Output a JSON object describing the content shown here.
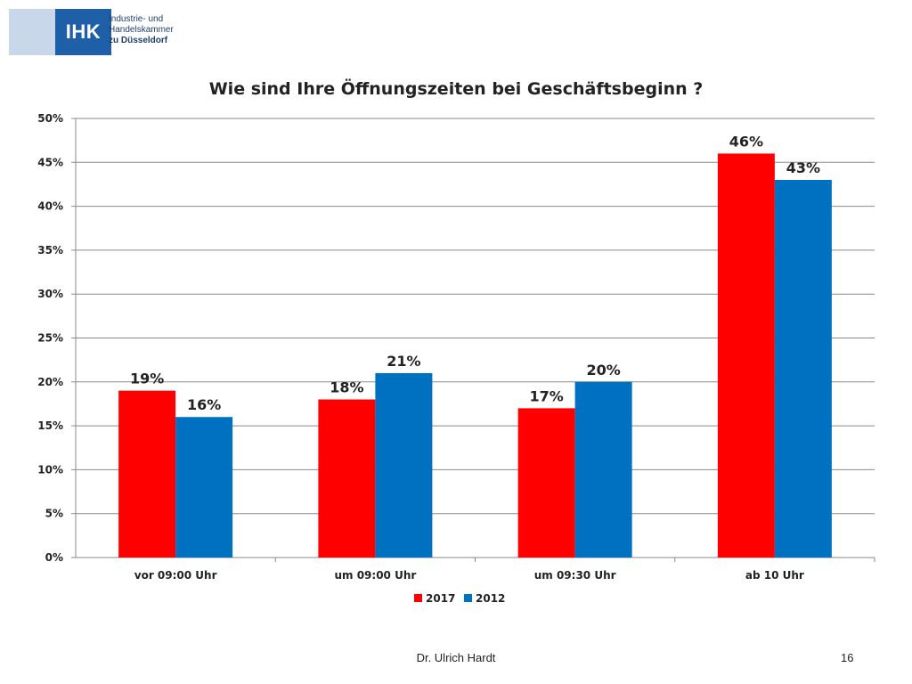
{
  "header": {
    "logo_abbr": "IHK",
    "logo_line1": "Industrie- und Handelskammer",
    "logo_line2": "zu Düsseldorf"
  },
  "footer": {
    "author": "Dr. Ulrich Hardt",
    "page": "16"
  },
  "colors": {
    "series_2017": "#ff0000",
    "series_2012": "#0070c0",
    "logo_blue": "#1f5fa8",
    "logo_light": "#c8d8ea"
  },
  "chart_data": {
    "type": "bar",
    "title": "Wie sind Ihre Öffnungszeiten bei Geschäftsbeginn ?",
    "categories": [
      "vor 09:00 Uhr",
      "um 09:00 Uhr",
      "um 09:30 Uhr",
      "ab 10 Uhr"
    ],
    "series": [
      {
        "name": "2017",
        "values": [
          19,
          18,
          17,
          46
        ],
        "labels": [
          "19%",
          "18%",
          "17%",
          "46%"
        ],
        "color": "#ff0000"
      },
      {
        "name": "2012",
        "values": [
          16,
          21,
          20,
          43
        ],
        "labels": [
          "16%",
          "21%",
          "20%",
          "43%"
        ],
        "color": "#0070c0"
      }
    ],
    "ylim": [
      0,
      50
    ],
    "yticks": [
      "0%",
      "5%",
      "10%",
      "15%",
      "20%",
      "25%",
      "30%",
      "35%",
      "40%",
      "45%",
      "50%"
    ],
    "xlabel": "",
    "ylabel": "",
    "grid": true,
    "legend": "bottom-center"
  }
}
